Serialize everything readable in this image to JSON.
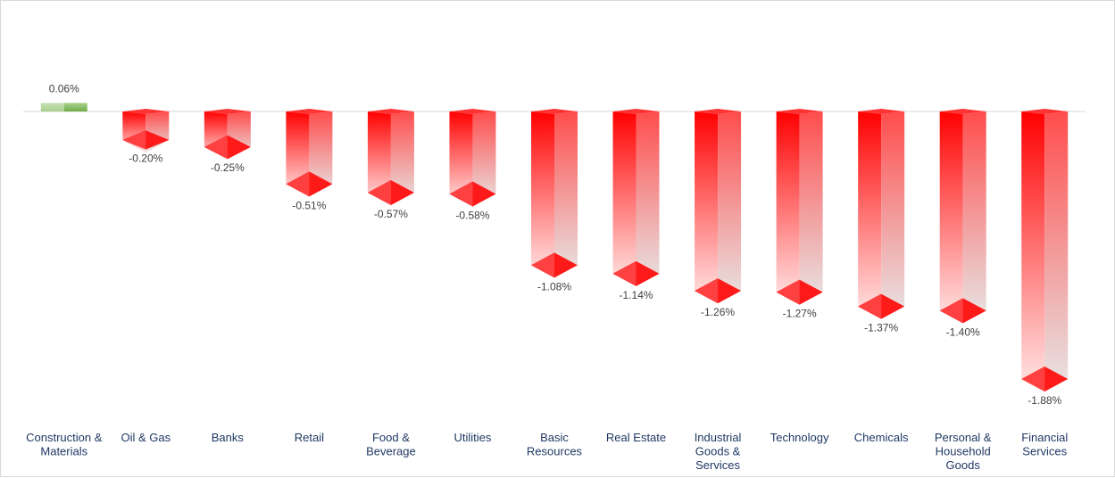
{
  "chart_data": {
    "type": "bar",
    "style": "3d-column",
    "title": "",
    "xlabel": "",
    "ylabel": "",
    "ylim": [
      -2.1,
      0.2
    ],
    "grid": false,
    "legend": "none",
    "categories": [
      "Construction & Materials",
      "Oil & Gas",
      "Banks",
      "Retail",
      "Food & Beverage",
      "Utilities",
      "Basic Resources",
      "Real Estate",
      "Industrial Goods & Services",
      "Technology",
      "Chemicals",
      "Personal & Household Goods",
      "Financial Services"
    ],
    "category_lines": [
      [
        "Construction &",
        "Materials"
      ],
      [
        "Oil & Gas"
      ],
      [
        "Banks"
      ],
      [
        "Retail"
      ],
      [
        "Food &",
        "Beverage"
      ],
      [
        "Utilities"
      ],
      [
        "Basic",
        "Resources"
      ],
      [
        "Real Estate"
      ],
      [
        "Industrial",
        "Goods &",
        "Services"
      ],
      [
        "Technology"
      ],
      [
        "Chemicals"
      ],
      [
        "Personal &",
        "Household",
        "Goods"
      ],
      [
        "Financial",
        "Services"
      ]
    ],
    "values": [
      0.06,
      -0.2,
      -0.25,
      -0.51,
      -0.57,
      -0.58,
      -1.08,
      -1.14,
      -1.26,
      -1.27,
      -1.37,
      -1.4,
      -1.88
    ],
    "data_labels": [
      "0.06%",
      "-0.20%",
      "-0.25%",
      "-0.51%",
      "-0.57%",
      "-0.58%",
      "-1.08%",
      "-1.14%",
      "-1.26%",
      "-1.27%",
      "-1.37%",
      "-1.40%",
      "-1.88%"
    ]
  },
  "colors": {
    "positive_front": "#a9d08e",
    "positive_side": "#70ad47",
    "negative_front": "#ff0000",
    "negative_side": "#ff5050",
    "fade": "#e7e6e6",
    "zero_line": "#d9d9d9",
    "value_label": "#404040",
    "category_label": "#1f3864"
  }
}
